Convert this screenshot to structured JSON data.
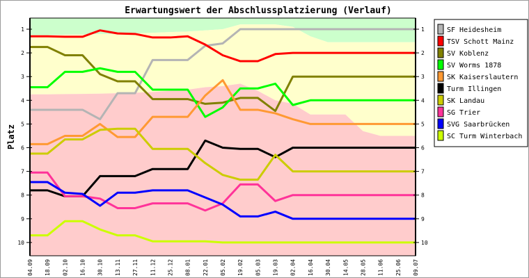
{
  "chart_data": {
    "type": "line",
    "title": "Erwartungswert der Abschlussplatzierung (Verlauf)",
    "xlabel": "",
    "ylabel": "Platz",
    "ylim": [
      10,
      1
    ],
    "yticks": [
      "1",
      "2",
      "3",
      "4",
      "5",
      "6",
      "7",
      "8",
      "9",
      "10"
    ],
    "categories": [
      "04.09",
      "18.09",
      "02.10",
      "16.10",
      "30.10",
      "13.11",
      "27.11",
      "11.12",
      "25.12",
      "08.01",
      "22.01",
      "05.02",
      "19.02",
      "05.03",
      "19.03",
      "02.04",
      "16.04",
      "30.04",
      "14.05",
      "28.05",
      "11.06",
      "25.06",
      "09.07"
    ],
    "legend_position": "right",
    "bands": [
      {
        "name": "top-zone",
        "color": "#ccffcc",
        "lower": [
          1.25,
          1.25,
          1.23,
          1.22,
          1.2,
          1.2,
          1.18,
          1.15,
          1.12,
          1.1,
          1.05,
          1.0,
          0.8,
          0.8,
          0.8,
          0.9,
          1.3,
          1.55,
          1.55,
          1.55,
          1.55,
          1.55,
          1.55
        ]
      },
      {
        "name": "middle-zone",
        "color": "#ffffcc",
        "lower": [
          3.75,
          3.75,
          3.74,
          3.73,
          3.72,
          3.7,
          3.68,
          3.65,
          3.6,
          3.55,
          3.45,
          3.4,
          3.3,
          3.6,
          4.0,
          4.15,
          4.6,
          4.6,
          4.6,
          5.3,
          5.5,
          5.5,
          5.5
        ]
      },
      {
        "name": "bottom-zone",
        "color": "#ffcccc",
        "lower": [
          10.7,
          10.7,
          10.7,
          10.7,
          10.7,
          10.7,
          10.7,
          10.7,
          10.7,
          10.7,
          10.7,
          10.7,
          10.7,
          10.7,
          10.7,
          10.7,
          10.7,
          10.7,
          10.7,
          10.7,
          10.7,
          10.7,
          10.7
        ]
      }
    ],
    "series": [
      {
        "name": "SF Heidesheim",
        "color": "#b4b4b4",
        "values": [
          4.4,
          4.4,
          4.4,
          4.4,
          4.8,
          3.7,
          3.7,
          2.3,
          2.3,
          2.3,
          1.7,
          1.6,
          1.0,
          1.0,
          1.0,
          1.0,
          1.0,
          1.0,
          1.0,
          1.0,
          1.0,
          1.0,
          1.0
        ]
      },
      {
        "name": "TSV Schott Mainz",
        "color": "#ff0000",
        "values": [
          1.3,
          1.3,
          1.32,
          1.32,
          1.05,
          1.18,
          1.2,
          1.35,
          1.35,
          1.3,
          1.65,
          2.1,
          2.35,
          2.35,
          2.05,
          2.0,
          2.0,
          2.0,
          2.0,
          2.0,
          2.0,
          2.0,
          2.0
        ]
      },
      {
        "name": "SV Koblenz",
        "color": "#808000",
        "values": [
          1.75,
          1.75,
          2.1,
          2.1,
          2.9,
          3.2,
          3.2,
          3.95,
          3.95,
          3.95,
          4.15,
          4.1,
          3.9,
          3.9,
          4.45,
          3.0,
          3.0,
          3.0,
          3.0,
          3.0,
          3.0,
          3.0,
          3.0
        ]
      },
      {
        "name": "SV Worms 1878",
        "color": "#00ff00",
        "values": [
          3.45,
          3.45,
          2.8,
          2.8,
          2.65,
          2.8,
          2.8,
          3.55,
          3.55,
          3.55,
          4.7,
          4.3,
          3.5,
          3.5,
          3.3,
          4.2,
          4.0,
          4.0,
          4.0,
          4.0,
          4.0,
          4.0,
          4.0
        ]
      },
      {
        "name": "SK Kaiserslautern",
        "color": "#ff9933",
        "values": [
          5.85,
          5.85,
          5.5,
          5.5,
          5.0,
          5.55,
          5.55,
          4.7,
          4.7,
          4.7,
          3.8,
          3.15,
          4.4,
          4.4,
          4.55,
          4.8,
          5.0,
          5.0,
          5.0,
          5.0,
          5.0,
          5.0,
          5.0
        ]
      },
      {
        "name": "Turm Illingen",
        "color": "#000000",
        "values": [
          7.8,
          7.8,
          8.05,
          8.05,
          7.2,
          7.2,
          7.2,
          6.9,
          6.9,
          6.9,
          5.7,
          6.0,
          6.05,
          6.05,
          6.4,
          6.0,
          6.0,
          6.0,
          6.0,
          6.0,
          6.0,
          6.0,
          6.0
        ]
      },
      {
        "name": "SK Landau",
        "color": "#cccc00",
        "values": [
          6.25,
          6.25,
          5.65,
          5.65,
          5.25,
          5.2,
          5.2,
          6.05,
          6.05,
          6.05,
          6.65,
          7.15,
          7.35,
          7.35,
          6.3,
          7.0,
          7.0,
          7.0,
          7.0,
          7.0,
          7.0,
          7.0,
          7.0
        ]
      },
      {
        "name": "SG Trier",
        "color": "#ff3399",
        "values": [
          7.05,
          7.05,
          8.05,
          8.05,
          8.15,
          8.55,
          8.55,
          8.35,
          8.35,
          8.35,
          8.65,
          8.35,
          7.55,
          7.55,
          8.25,
          8.0,
          8.0,
          8.0,
          8.0,
          8.0,
          8.0,
          8.0,
          8.0
        ]
      },
      {
        "name": "SVG Saarbrücken",
        "color": "#0000ff",
        "values": [
          7.45,
          7.45,
          7.9,
          7.95,
          8.45,
          7.9,
          7.9,
          7.8,
          7.8,
          7.8,
          8.1,
          8.4,
          8.9,
          8.9,
          8.7,
          9.0,
          9.0,
          9.0,
          9.0,
          9.0,
          9.0,
          9.0,
          9.0
        ]
      },
      {
        "name": "SC Turm Winterbach",
        "color": "#ccff00",
        "values": [
          9.7,
          9.7,
          9.1,
          9.1,
          9.45,
          9.7,
          9.7,
          9.95,
          9.95,
          9.95,
          9.95,
          10.0,
          10.0,
          10.0,
          10.0,
          10.0,
          10.0,
          10.0,
          10.0,
          10.0,
          10.0,
          10.0,
          10.0
        ]
      }
    ]
  }
}
